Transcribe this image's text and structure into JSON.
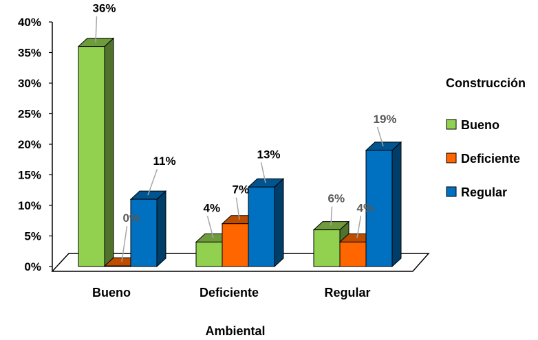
{
  "chart_data": {
    "type": "bar",
    "style": "3d-clustered-column",
    "categories": [
      "Bueno",
      "Deficiente",
      "Regular"
    ],
    "xlabel": "Ambiental",
    "ylabel": "",
    "ylim": [
      0,
      40
    ],
    "y_ticks": [
      "0%",
      "5%",
      "10%",
      "15%",
      "20%",
      "25%",
      "30%",
      "35%",
      "40%"
    ],
    "legend": {
      "title": "Construcción",
      "placement": "right"
    },
    "grid": false,
    "series": [
      {
        "name": "Bueno",
        "color": "#92D050",
        "values": [
          36,
          4,
          6
        ],
        "labels": [
          "36%",
          "4%",
          "6%"
        ]
      },
      {
        "name": "Deficiente",
        "color": "#FF6600",
        "values": [
          0,
          7,
          4
        ],
        "labels": [
          "0%",
          "7%",
          "4%"
        ]
      },
      {
        "name": "Regular",
        "color": "#0070C0",
        "values": [
          11,
          13,
          19
        ],
        "labels": [
          "11%",
          "13%",
          "19%"
        ]
      }
    ]
  }
}
